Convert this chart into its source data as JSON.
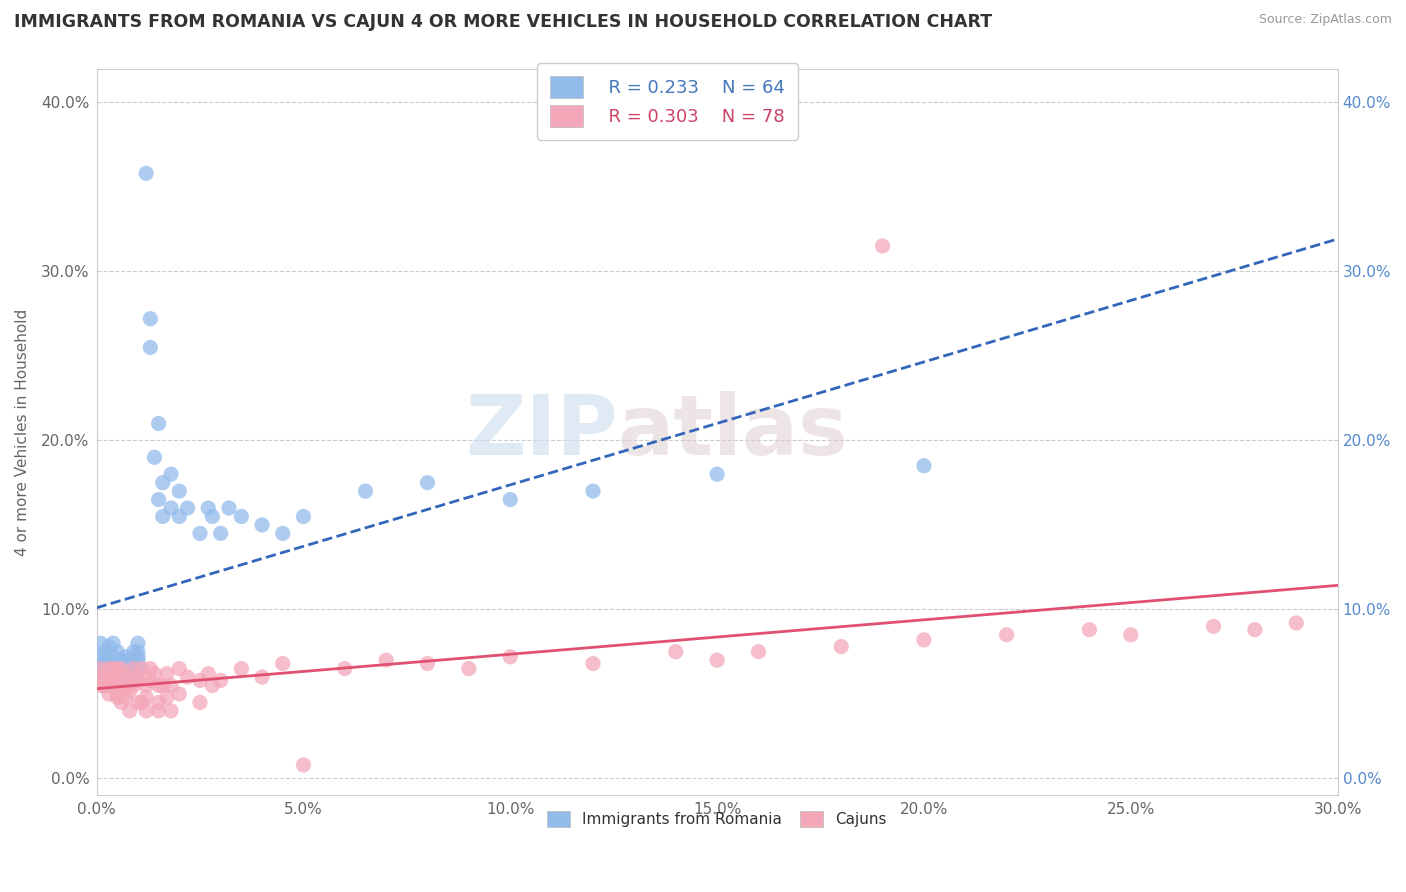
{
  "title": "IMMIGRANTS FROM ROMANIA VS CAJUN 4 OR MORE VEHICLES IN HOUSEHOLD CORRELATION CHART",
  "source": "Source: ZipAtlas.com",
  "xlim": [
    0.0,
    0.3
  ],
  "ylim": [
    -0.01,
    0.42
  ],
  "legend_label1": "Immigrants from Romania",
  "legend_label2": "Cajuns",
  "legend_r1": "R = 0.233",
  "legend_n1": "N = 64",
  "legend_r2": "R = 0.303",
  "legend_n2": "N = 78",
  "color_blue": "#92BBEC",
  "color_pink": "#F4A7B9",
  "trendline1_color": "#3366BB",
  "trendline2_color": "#E05070",
  "watermark_zip": "ZIP",
  "watermark_atlas": "atlas",
  "blue_points": [
    [
      0.001,
      0.072
    ],
    [
      0.001,
      0.065
    ],
    [
      0.001,
      0.08
    ],
    [
      0.002,
      0.07
    ],
    [
      0.002,
      0.068
    ],
    [
      0.002,
      0.075
    ],
    [
      0.002,
      0.062
    ],
    [
      0.003,
      0.06
    ],
    [
      0.003,
      0.065
    ],
    [
      0.003,
      0.07
    ],
    [
      0.003,
      0.078
    ],
    [
      0.004,
      0.068
    ],
    [
      0.004,
      0.072
    ],
    [
      0.004,
      0.065
    ],
    [
      0.004,
      0.08
    ],
    [
      0.005,
      0.065
    ],
    [
      0.005,
      0.068
    ],
    [
      0.005,
      0.075
    ],
    [
      0.005,
      0.058
    ],
    [
      0.006,
      0.07
    ],
    [
      0.006,
      0.063
    ],
    [
      0.006,
      0.07
    ],
    [
      0.007,
      0.072
    ],
    [
      0.007,
      0.068
    ],
    [
      0.007,
      0.065
    ],
    [
      0.007,
      0.062
    ],
    [
      0.008,
      0.07
    ],
    [
      0.008,
      0.065
    ],
    [
      0.009,
      0.068
    ],
    [
      0.009,
      0.075
    ],
    [
      0.009,
      0.062
    ],
    [
      0.01,
      0.08
    ],
    [
      0.01,
      0.072
    ],
    [
      0.01,
      0.065
    ],
    [
      0.01,
      0.07
    ],
    [
      0.01,
      0.075
    ],
    [
      0.012,
      0.358
    ],
    [
      0.013,
      0.272
    ],
    [
      0.013,
      0.255
    ],
    [
      0.014,
      0.19
    ],
    [
      0.015,
      0.21
    ],
    [
      0.015,
      0.165
    ],
    [
      0.016,
      0.155
    ],
    [
      0.016,
      0.175
    ],
    [
      0.018,
      0.18
    ],
    [
      0.018,
      0.16
    ],
    [
      0.02,
      0.155
    ],
    [
      0.02,
      0.17
    ],
    [
      0.022,
      0.16
    ],
    [
      0.025,
      0.145
    ],
    [
      0.027,
      0.16
    ],
    [
      0.028,
      0.155
    ],
    [
      0.03,
      0.145
    ],
    [
      0.032,
      0.16
    ],
    [
      0.035,
      0.155
    ],
    [
      0.04,
      0.15
    ],
    [
      0.045,
      0.145
    ],
    [
      0.05,
      0.155
    ],
    [
      0.065,
      0.17
    ],
    [
      0.08,
      0.175
    ],
    [
      0.1,
      0.165
    ],
    [
      0.12,
      0.17
    ],
    [
      0.15,
      0.18
    ],
    [
      0.2,
      0.185
    ]
  ],
  "pink_points": [
    [
      0.001,
      0.065
    ],
    [
      0.001,
      0.055
    ],
    [
      0.001,
      0.058
    ],
    [
      0.002,
      0.062
    ],
    [
      0.002,
      0.058
    ],
    [
      0.002,
      0.055
    ],
    [
      0.003,
      0.065
    ],
    [
      0.003,
      0.06
    ],
    [
      0.003,
      0.05
    ],
    [
      0.003,
      0.055
    ],
    [
      0.004,
      0.065
    ],
    [
      0.004,
      0.055
    ],
    [
      0.004,
      0.058
    ],
    [
      0.005,
      0.062
    ],
    [
      0.005,
      0.055
    ],
    [
      0.005,
      0.065
    ],
    [
      0.005,
      0.048
    ],
    [
      0.005,
      0.05
    ],
    [
      0.006,
      0.058
    ],
    [
      0.006,
      0.065
    ],
    [
      0.006,
      0.045
    ],
    [
      0.007,
      0.062
    ],
    [
      0.007,
      0.055
    ],
    [
      0.007,
      0.048
    ],
    [
      0.008,
      0.052
    ],
    [
      0.008,
      0.058
    ],
    [
      0.008,
      0.04
    ],
    [
      0.009,
      0.055
    ],
    [
      0.009,
      0.065
    ],
    [
      0.01,
      0.06
    ],
    [
      0.01,
      0.045
    ],
    [
      0.01,
      0.058
    ],
    [
      0.011,
      0.065
    ],
    [
      0.011,
      0.045
    ],
    [
      0.012,
      0.055
    ],
    [
      0.012,
      0.048
    ],
    [
      0.012,
      0.04
    ],
    [
      0.013,
      0.058
    ],
    [
      0.013,
      0.065
    ],
    [
      0.014,
      0.062
    ],
    [
      0.015,
      0.055
    ],
    [
      0.015,
      0.04
    ],
    [
      0.015,
      0.045
    ],
    [
      0.016,
      0.055
    ],
    [
      0.017,
      0.048
    ],
    [
      0.017,
      0.062
    ],
    [
      0.018,
      0.055
    ],
    [
      0.018,
      0.04
    ],
    [
      0.02,
      0.05
    ],
    [
      0.02,
      0.065
    ],
    [
      0.022,
      0.06
    ],
    [
      0.025,
      0.058
    ],
    [
      0.025,
      0.045
    ],
    [
      0.027,
      0.062
    ],
    [
      0.028,
      0.055
    ],
    [
      0.03,
      0.058
    ],
    [
      0.035,
      0.065
    ],
    [
      0.04,
      0.06
    ],
    [
      0.045,
      0.068
    ],
    [
      0.05,
      0.008
    ],
    [
      0.06,
      0.065
    ],
    [
      0.07,
      0.07
    ],
    [
      0.08,
      0.068
    ],
    [
      0.09,
      0.065
    ],
    [
      0.1,
      0.072
    ],
    [
      0.12,
      0.068
    ],
    [
      0.14,
      0.075
    ],
    [
      0.15,
      0.07
    ],
    [
      0.16,
      0.075
    ],
    [
      0.18,
      0.078
    ],
    [
      0.19,
      0.315
    ],
    [
      0.2,
      0.082
    ],
    [
      0.22,
      0.085
    ],
    [
      0.24,
      0.088
    ],
    [
      0.25,
      0.085
    ],
    [
      0.27,
      0.09
    ],
    [
      0.28,
      0.088
    ],
    [
      0.29,
      0.092
    ]
  ]
}
